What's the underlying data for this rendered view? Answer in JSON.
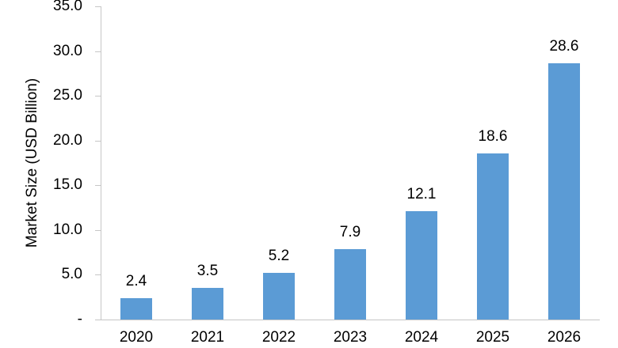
{
  "chart_data": {
    "type": "bar",
    "title": "",
    "xlabel": "",
    "ylabel": "Market Size (USD Billion)",
    "categories": [
      "2020",
      "2021",
      "2022",
      "2023",
      "2024",
      "2025",
      "2026"
    ],
    "values": [
      2.4,
      3.5,
      5.2,
      7.9,
      12.1,
      18.6,
      28.6
    ],
    "data_labels": [
      "2.4",
      "3.5",
      "5.2",
      "7.9",
      "12.1",
      "18.6",
      "28.6"
    ],
    "ylim": [
      0,
      35
    ],
    "ytick_interval": 5,
    "ytick_labels": [
      "35.0",
      "30.0",
      "25.0",
      "20.0",
      "15.0",
      "10.0",
      "5.0",
      "-"
    ],
    "grid": "off",
    "legend": "none",
    "colors": {
      "bar": "#5B9BD5",
      "axis_line": "#C6C6C6",
      "text": "#000000",
      "background": "#FFFFFF"
    }
  }
}
